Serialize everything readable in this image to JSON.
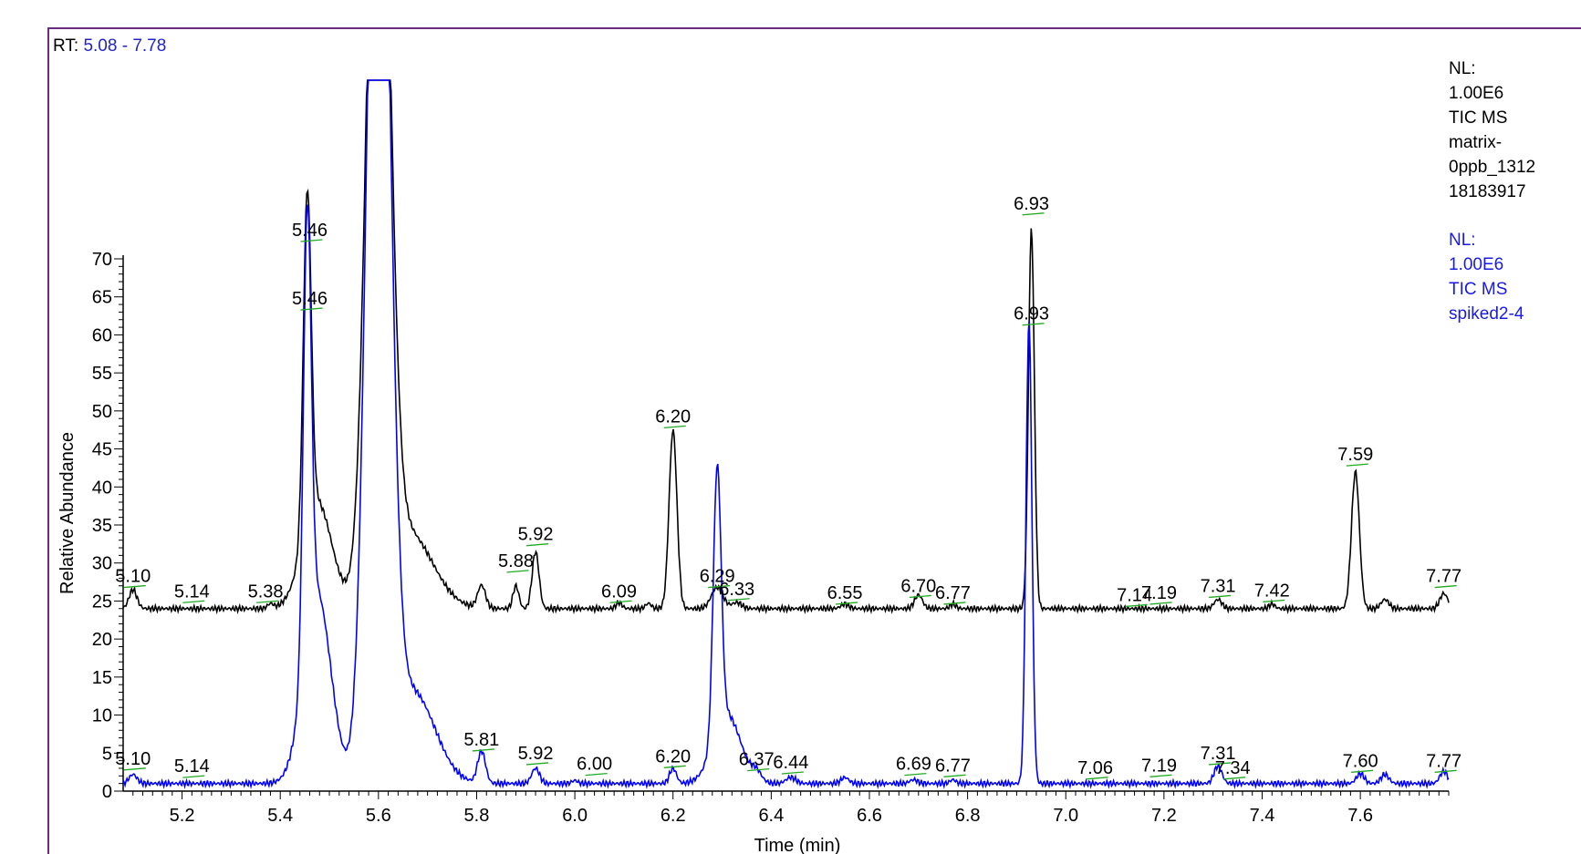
{
  "header": {
    "rt_prefix": "RT:",
    "rt_range": "5.08 - 7.78"
  },
  "legend": {
    "black": [
      "NL:",
      "1.00E6",
      "TIC  MS",
      "matrix-",
      "0ppb_1312",
      "18183917"
    ],
    "blue": [
      "NL:",
      "1.00E6",
      "TIC  MS",
      "spiked2-4"
    ]
  },
  "colors": {
    "black_trace": "#000000",
    "blue_trace": "#0000ff",
    "baseline_marks": "#22aa22",
    "frame": "#6a2c7e",
    "rt_range": "#2222cc"
  },
  "chart_data": {
    "type": "line",
    "xlabel": "Time (min)",
    "ylabel": "Relative Abundance",
    "xlim": [
      5.08,
      7.78
    ],
    "ylim": [
      0,
      72
    ],
    "x_ticks": [
      5.2,
      5.4,
      5.6,
      5.8,
      6.0,
      6.2,
      6.4,
      6.6,
      6.8,
      7.0,
      7.2,
      7.4,
      7.6
    ],
    "x_tick_labels": [
      "5.2",
      "5.4",
      "5.6",
      "5.8",
      "6.0",
      "6.2",
      "6.4",
      "6.6",
      "6.8",
      "7.0",
      "7.2",
      "7.4",
      "7.6"
    ],
    "y_ticks": [
      0,
      5,
      10,
      15,
      20,
      25,
      30,
      35,
      40,
      45,
      50,
      55,
      60,
      65,
      70
    ],
    "y_tick_labels": [
      "0",
      "5",
      "10",
      "15",
      "20",
      "25",
      "30",
      "35",
      "40",
      "45",
      "50",
      "55",
      "60",
      "65",
      "70"
    ],
    "series": [
      {
        "name": "TIC MS matrix-0ppb_131218183917",
        "color": "#000000",
        "baseline": 24,
        "peaks": [
          {
            "x": 5.1,
            "height": 2.5,
            "width": 0.008
          },
          {
            "x": 5.38,
            "height": 0.6,
            "width": 0.006
          },
          {
            "x": 5.455,
            "height": 44,
            "width": 0.008
          },
          {
            "x": 5.475,
            "height": 14,
            "width": 0.03
          },
          {
            "x": 5.6,
            "height": 120,
            "width": 0.022
          },
          {
            "x": 5.66,
            "height": 10,
            "width": 0.05
          },
          {
            "x": 5.81,
            "height": 3,
            "width": 0.008
          },
          {
            "x": 5.88,
            "height": 3,
            "width": 0.006
          },
          {
            "x": 5.92,
            "height": 7.5,
            "width": 0.007
          },
          {
            "x": 6.09,
            "height": 0.8,
            "width": 0.006
          },
          {
            "x": 6.15,
            "height": 0.7,
            "width": 0.006
          },
          {
            "x": 6.2,
            "height": 23.5,
            "width": 0.008
          },
          {
            "x": 6.29,
            "height": 2.8,
            "width": 0.012
          },
          {
            "x": 6.33,
            "height": 0.8,
            "width": 0.01
          },
          {
            "x": 6.55,
            "height": 0.6,
            "width": 0.008
          },
          {
            "x": 6.7,
            "height": 1.8,
            "width": 0.008
          },
          {
            "x": 6.77,
            "height": 0.6,
            "width": 0.006
          },
          {
            "x": 6.93,
            "height": 50,
            "width": 0.006
          },
          {
            "x": 7.31,
            "height": 1.2,
            "width": 0.008
          },
          {
            "x": 7.42,
            "height": 0.6,
            "width": 0.006
          },
          {
            "x": 7.59,
            "height": 18,
            "width": 0.008
          },
          {
            "x": 7.65,
            "height": 1.2,
            "width": 0.008
          },
          {
            "x": 7.77,
            "height": 2.0,
            "width": 0.008
          }
        ],
        "peak_labels": [
          {
            "x": 5.1,
            "label": "5.10",
            "y": 27.5
          },
          {
            "x": 5.22,
            "label": "5.14",
            "y": 25.5
          },
          {
            "x": 5.37,
            "label": "5.38",
            "y": 25.5
          },
          {
            "x": 5.46,
            "label": "5.46",
            "y": 73
          },
          {
            "x": 5.88,
            "label": "5.88",
            "y": 29.5
          },
          {
            "x": 5.92,
            "label": "5.92",
            "y": 33
          },
          {
            "x": 6.09,
            "label": "6.09",
            "y": 25.5
          },
          {
            "x": 6.2,
            "label": "6.20",
            "y": 48.5
          },
          {
            "x": 6.29,
            "label": "6.29",
            "y": 27.5
          },
          {
            "x": 6.33,
            "label": "6.33",
            "y": 25.8
          },
          {
            "x": 6.55,
            "label": "6.55",
            "y": 25.3
          },
          {
            "x": 6.7,
            "label": "6.70",
            "y": 26.2
          },
          {
            "x": 6.77,
            "label": "6.77",
            "y": 25.3
          },
          {
            "x": 6.93,
            "label": "6.93",
            "y": 76.5
          },
          {
            "x": 7.14,
            "label": "7.14",
            "y": 25.0
          },
          {
            "x": 7.19,
            "label": "7.19",
            "y": 25.3
          },
          {
            "x": 7.31,
            "label": "7.31",
            "y": 26.2
          },
          {
            "x": 7.42,
            "label": "7.42",
            "y": 25.6
          },
          {
            "x": 7.59,
            "label": "7.59",
            "y": 43.5
          },
          {
            "x": 7.77,
            "label": "7.77",
            "y": 27.5
          }
        ]
      },
      {
        "name": "TIC MS spiked2-4",
        "color": "#0000ff",
        "baseline": 1,
        "peaks": [
          {
            "x": 5.1,
            "height": 1.2,
            "width": 0.008
          },
          {
            "x": 5.455,
            "height": 57,
            "width": 0.008
          },
          {
            "x": 5.475,
            "height": 25,
            "width": 0.028
          },
          {
            "x": 5.6,
            "height": 150,
            "width": 0.022
          },
          {
            "x": 5.67,
            "height": 12,
            "width": 0.045
          },
          {
            "x": 5.81,
            "height": 4.2,
            "width": 0.008
          },
          {
            "x": 5.92,
            "height": 2.0,
            "width": 0.008
          },
          {
            "x": 6.0,
            "height": 0.4,
            "width": 0.006
          },
          {
            "x": 6.2,
            "height": 2.0,
            "width": 0.007
          },
          {
            "x": 6.29,
            "height": 35,
            "width": 0.008
          },
          {
            "x": 6.31,
            "height": 9,
            "width": 0.028
          },
          {
            "x": 6.37,
            "height": 1.2,
            "width": 0.01
          },
          {
            "x": 6.44,
            "height": 0.8,
            "width": 0.01
          },
          {
            "x": 6.55,
            "height": 0.8,
            "width": 0.008
          },
          {
            "x": 6.69,
            "height": 0.5,
            "width": 0.008
          },
          {
            "x": 6.77,
            "height": 0.5,
            "width": 0.006
          },
          {
            "x": 6.925,
            "height": 61,
            "width": 0.006
          },
          {
            "x": 7.31,
            "height": 2.3,
            "width": 0.008
          },
          {
            "x": 7.6,
            "height": 1.3,
            "width": 0.008
          },
          {
            "x": 7.65,
            "height": 1.2,
            "width": 0.008
          },
          {
            "x": 7.77,
            "height": 1.6,
            "width": 0.008
          }
        ],
        "peak_labels": [
          {
            "x": 5.1,
            "label": "5.10",
            "y": 3.5
          },
          {
            "x": 5.22,
            "label": "5.14",
            "y": 2.5
          },
          {
            "x": 5.46,
            "label": "5.46",
            "y": 64
          },
          {
            "x": 5.81,
            "label": "5.81",
            "y": 6
          },
          {
            "x": 5.92,
            "label": "5.92",
            "y": 4.2
          },
          {
            "x": 6.04,
            "label": "6.00",
            "y": 2.8
          },
          {
            "x": 6.2,
            "label": "6.20",
            "y": 3.8
          },
          {
            "x": 6.37,
            "label": "6.37",
            "y": 3.4
          },
          {
            "x": 6.44,
            "label": "6.44",
            "y": 3.0
          },
          {
            "x": 6.69,
            "label": "6.69",
            "y": 2.8
          },
          {
            "x": 6.77,
            "label": "6.77",
            "y": 2.6
          },
          {
            "x": 6.93,
            "label": "6.93",
            "y": 62
          },
          {
            "x": 7.06,
            "label": "7.06",
            "y": 2.3
          },
          {
            "x": 7.19,
            "label": "7.19",
            "y": 2.6
          },
          {
            "x": 7.31,
            "label": "7.31",
            "y": 4.2
          },
          {
            "x": 7.34,
            "label": "7.34",
            "y": 2.3
          },
          {
            "x": 7.6,
            "label": "7.60",
            "y": 3.2
          },
          {
            "x": 7.77,
            "label": "7.77",
            "y": 3.2
          }
        ]
      }
    ]
  }
}
